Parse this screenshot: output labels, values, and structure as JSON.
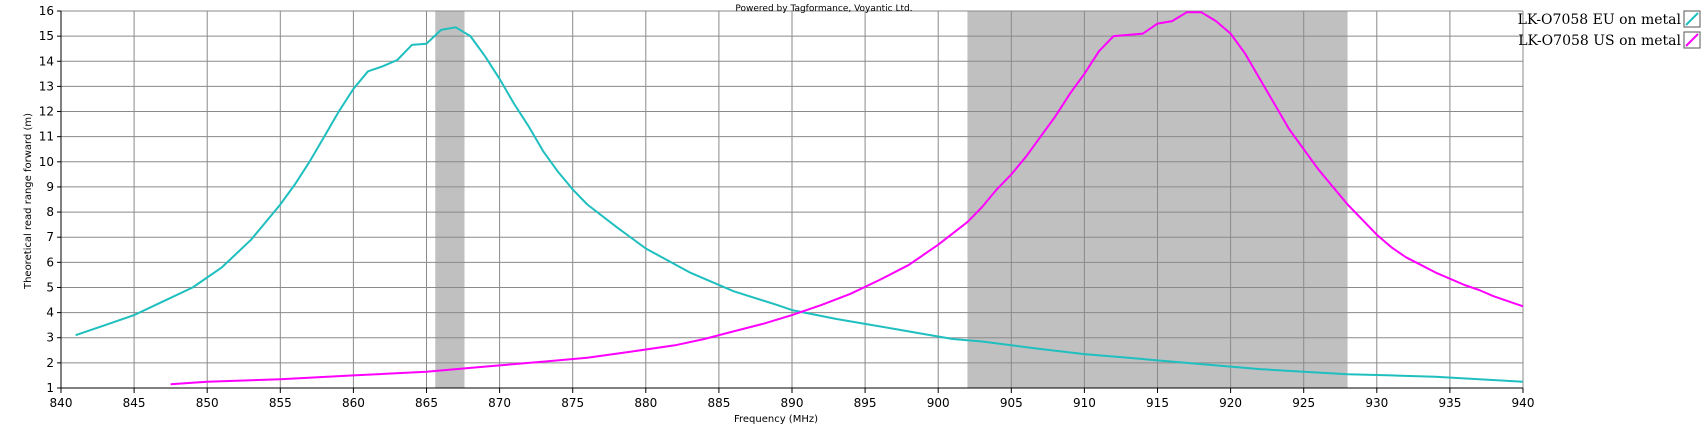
{
  "chart_data": {
    "type": "line",
    "credit": "Powered by Tagformance, Voyantic Ltd.",
    "xlabel": "Frequency (MHz)",
    "ylabel": "Theoretical read range forward (m)",
    "xlim": [
      840,
      940
    ],
    "ylim": [
      1,
      16
    ],
    "x_ticks": [
      "840",
      "845",
      "850",
      "855",
      "860",
      "865",
      "870",
      "875",
      "880",
      "885",
      "890",
      "895",
      "900",
      "905",
      "910",
      "915",
      "920",
      "925",
      "930",
      "935",
      "940"
    ],
    "y_ticks": [
      "1",
      "2",
      "3",
      "4",
      "5",
      "6",
      "7",
      "8",
      "9",
      "10",
      "11",
      "12",
      "13",
      "14",
      "15",
      "16"
    ],
    "grid": true,
    "legend_position": "top-right",
    "shaded_bands": [
      {
        "x_start": 865.6,
        "x_end": 867.6,
        "color": "#c0c0c0"
      },
      {
        "x_start": 902,
        "x_end": 928,
        "color": "#c0c0c0"
      }
    ],
    "series": [
      {
        "name": "LK-O7058 EU on metal",
        "color": "#1fbfbf",
        "points": [
          [
            841,
            3.1
          ],
          [
            843,
            3.5
          ],
          [
            845,
            3.9
          ],
          [
            847,
            4.45
          ],
          [
            849,
            5.0
          ],
          [
            851,
            5.8
          ],
          [
            853,
            6.9
          ],
          [
            855,
            8.3
          ],
          [
            856,
            9.1
          ],
          [
            857,
            10.0
          ],
          [
            858,
            11.0
          ],
          [
            859,
            12.0
          ],
          [
            860,
            12.9
          ],
          [
            861,
            13.6
          ],
          [
            862,
            13.8
          ],
          [
            863,
            14.05
          ],
          [
            864,
            14.65
          ],
          [
            865,
            14.7
          ],
          [
            866,
            15.25
          ],
          [
            867,
            15.35
          ],
          [
            868,
            15.0
          ],
          [
            869,
            14.2
          ],
          [
            870,
            13.3
          ],
          [
            871,
            12.3
          ],
          [
            872,
            11.4
          ],
          [
            873,
            10.4
          ],
          [
            874,
            9.6
          ],
          [
            875,
            8.9
          ],
          [
            876,
            8.3
          ],
          [
            878,
            7.4
          ],
          [
            880,
            6.55
          ],
          [
            883,
            5.6
          ],
          [
            886,
            4.85
          ],
          [
            889,
            4.3
          ],
          [
            890,
            4.1
          ],
          [
            893,
            3.75
          ],
          [
            895,
            3.55
          ],
          [
            897,
            3.35
          ],
          [
            899,
            3.15
          ],
          [
            901,
            2.95
          ],
          [
            903,
            2.85
          ],
          [
            905,
            2.7
          ],
          [
            907,
            2.55
          ],
          [
            910,
            2.35
          ],
          [
            913,
            2.2
          ],
          [
            916,
            2.05
          ],
          [
            918,
            1.95
          ],
          [
            920,
            1.85
          ],
          [
            922,
            1.75
          ],
          [
            925,
            1.65
          ],
          [
            928,
            1.55
          ],
          [
            931,
            1.5
          ],
          [
            934,
            1.45
          ],
          [
            937,
            1.35
          ],
          [
            940,
            1.25
          ]
        ]
      },
      {
        "name": "LK-O7058 US on metal",
        "color": "#ff00ff",
        "points": [
          [
            847.5,
            1.15
          ],
          [
            850,
            1.25
          ],
          [
            855,
            1.35
          ],
          [
            860,
            1.5
          ],
          [
            865,
            1.65
          ],
          [
            868,
            1.8
          ],
          [
            870,
            1.9
          ],
          [
            873,
            2.05
          ],
          [
            876,
            2.2
          ],
          [
            879,
            2.45
          ],
          [
            882,
            2.7
          ],
          [
            884,
            2.95
          ],
          [
            886,
            3.25
          ],
          [
            888,
            3.55
          ],
          [
            890,
            3.9
          ],
          [
            892,
            4.3
          ],
          [
            894,
            4.75
          ],
          [
            896,
            5.3
          ],
          [
            898,
            5.9
          ],
          [
            900,
            6.7
          ],
          [
            902,
            7.6
          ],
          [
            903,
            8.2
          ],
          [
            904,
            8.9
          ],
          [
            905,
            9.5
          ],
          [
            906,
            10.2
          ],
          [
            907,
            11.0
          ],
          [
            908,
            11.8
          ],
          [
            909,
            12.7
          ],
          [
            910,
            13.5
          ],
          [
            911,
            14.4
          ],
          [
            912,
            15.0
          ],
          [
            913,
            15.05
          ],
          [
            914,
            15.1
          ],
          [
            915,
            15.5
          ],
          [
            916,
            15.6
          ],
          [
            917,
            15.95
          ],
          [
            918,
            15.95
          ],
          [
            919,
            15.6
          ],
          [
            920,
            15.1
          ],
          [
            921,
            14.3
          ],
          [
            922,
            13.3
          ],
          [
            923,
            12.3
          ],
          [
            924,
            11.3
          ],
          [
            925,
            10.5
          ],
          [
            926,
            9.7
          ],
          [
            927,
            9.0
          ],
          [
            928,
            8.3
          ],
          [
            929,
            7.7
          ],
          [
            930,
            7.1
          ],
          [
            931,
            6.6
          ],
          [
            932,
            6.2
          ],
          [
            933,
            5.9
          ],
          [
            934,
            5.6
          ],
          [
            935,
            5.35
          ],
          [
            936,
            5.1
          ],
          [
            937,
            4.9
          ],
          [
            938,
            4.65
          ],
          [
            939,
            4.45
          ],
          [
            940,
            4.25
          ]
        ]
      }
    ]
  }
}
